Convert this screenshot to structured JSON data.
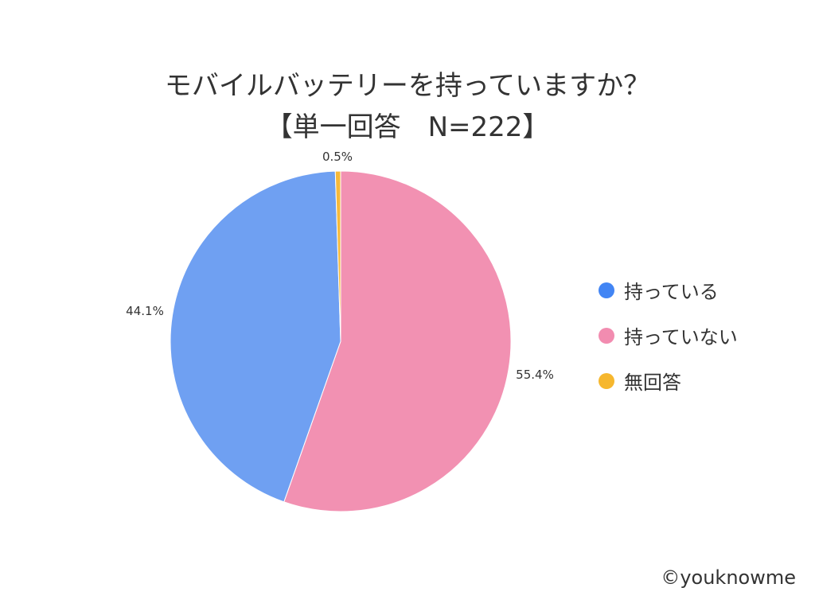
{
  "chart_data": {
    "type": "pie",
    "title": [
      "モバイルバッテリーを持っていますか？",
      "【単一回答　N=222】"
    ],
    "start_angle": "top",
    "direction": "clockwise",
    "slices": [
      {
        "name": "持っていない",
        "value": 55.4,
        "label": "55.4%",
        "color": "#f291b2",
        "legend_color": "#f28cb0"
      },
      {
        "name": "持っている",
        "value": 44.1,
        "label": "44.1%",
        "color": "#6fa0f2",
        "legend_color": "#4285f4"
      },
      {
        "name": "無回答",
        "value": 0.5,
        "label": "0.5%",
        "color": "#f6b93b",
        "legend_color": "#f6b72e"
      }
    ],
    "legend_order": [
      "持っている",
      "持っていない",
      "無回答"
    ],
    "legend_placement": "right"
  },
  "credit": "©youknowme"
}
